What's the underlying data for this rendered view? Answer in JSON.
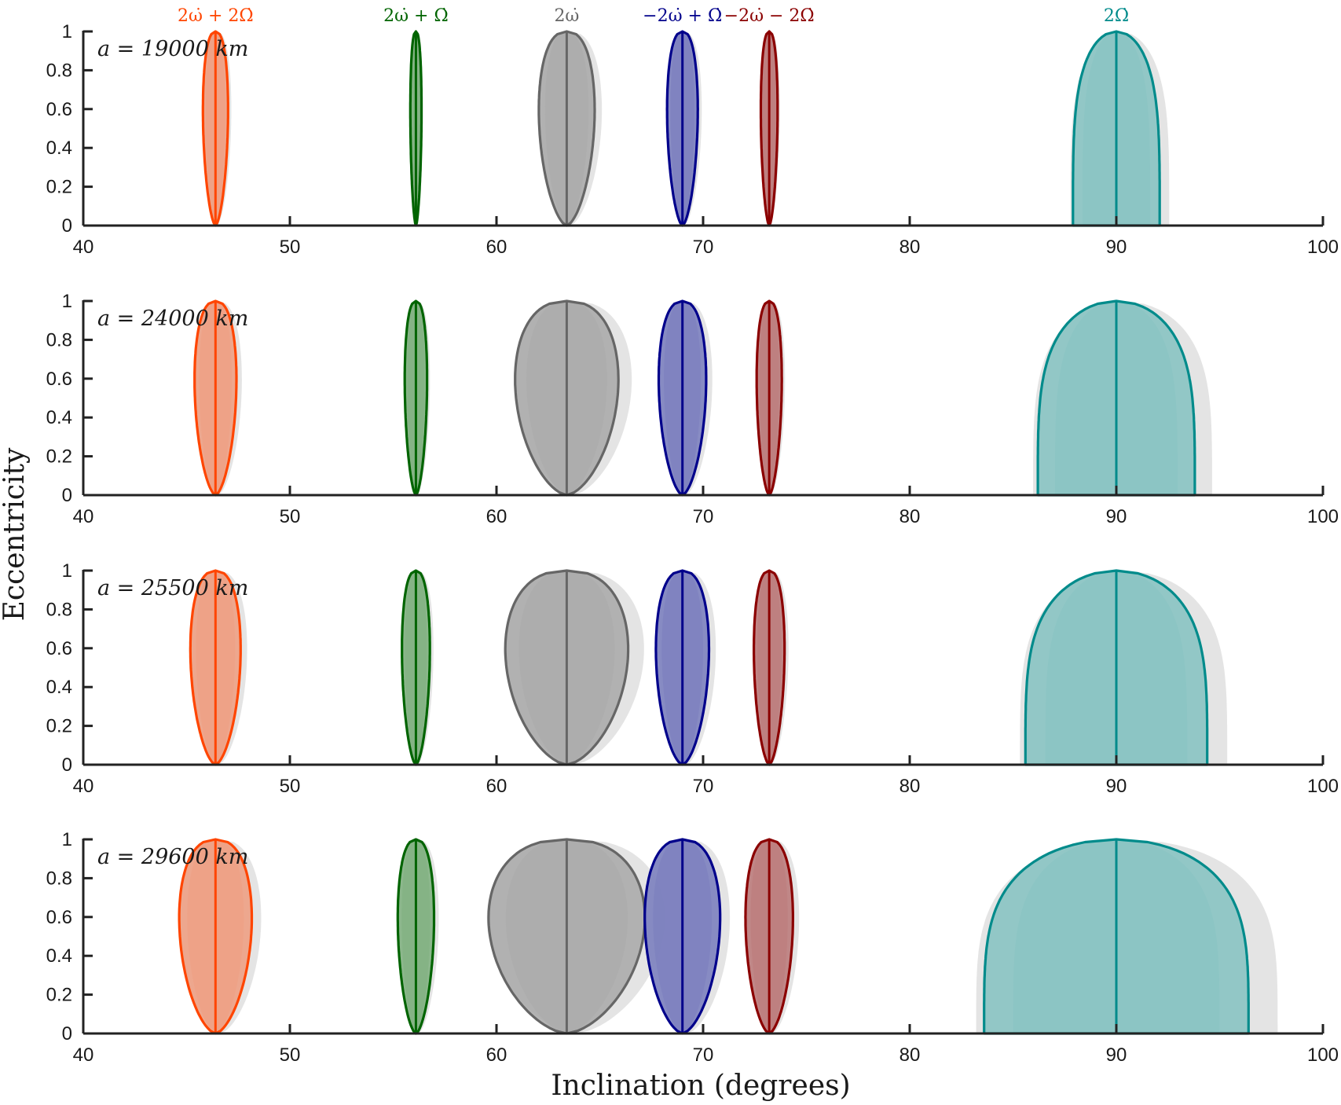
{
  "chart_data": {
    "type": "area",
    "xlabel": "Inclination (degrees)",
    "ylabel": "Eccentricity",
    "xlim": [
      40,
      100
    ],
    "ylim": [
      0,
      1
    ],
    "x_ticks": [
      40,
      50,
      60,
      70,
      80,
      90,
      100
    ],
    "y_ticks": [
      0,
      0.2,
      0.4,
      0.6,
      0.8,
      1
    ],
    "y_tick_labels": [
      "0",
      "0.2",
      "0.4",
      "0.6",
      "0.8",
      "1"
    ],
    "resonances": [
      {
        "name": "2ω̇ + 2Ω̇",
        "center": 46.4,
        "color": "#FF4500",
        "fill": "#EE9E82",
        "shape": "teardrop"
      },
      {
        "name": "2ω̇ + Ω̇",
        "center": 56.1,
        "color": "#006400",
        "fill": "#7FB07F",
        "shape": "teardrop"
      },
      {
        "name": "2ω̇",
        "center": 63.4,
        "color": "#666666",
        "fill": "#AAAAAA",
        "shape": "teardrop"
      },
      {
        "name": "−2ω̇ + Ω̇",
        "center": 69.0,
        "color": "#00008B",
        "fill": "#7A7EBE",
        "shape": "teardrop"
      },
      {
        "name": "−2ω̇ − 2Ω̇",
        "center": 73.2,
        "color": "#8B0000",
        "fill": "#BB7A7A",
        "shape": "teardrop"
      },
      {
        "name": "2Ω̇",
        "center": 90.0,
        "color": "#008B8B",
        "fill": "#86C3C2",
        "shape": "dome"
      }
    ],
    "panels": [
      {
        "label": "a = 19000 km",
        "widths": [
          0.9,
          0.4,
          2.0,
          1.1,
          0.6,
          2.1
        ]
      },
      {
        "label": "a = 24000 km",
        "widths": [
          1.5,
          0.8,
          3.7,
          1.7,
          0.9,
          3.8
        ]
      },
      {
        "label": "a = 25500 km",
        "widths": [
          1.8,
          1.0,
          4.4,
          1.9,
          1.1,
          4.4
        ]
      },
      {
        "label": "a = 29600 km",
        "widths": [
          2.6,
          1.3,
          5.6,
          2.7,
          1.7,
          6.4
        ]
      }
    ]
  }
}
